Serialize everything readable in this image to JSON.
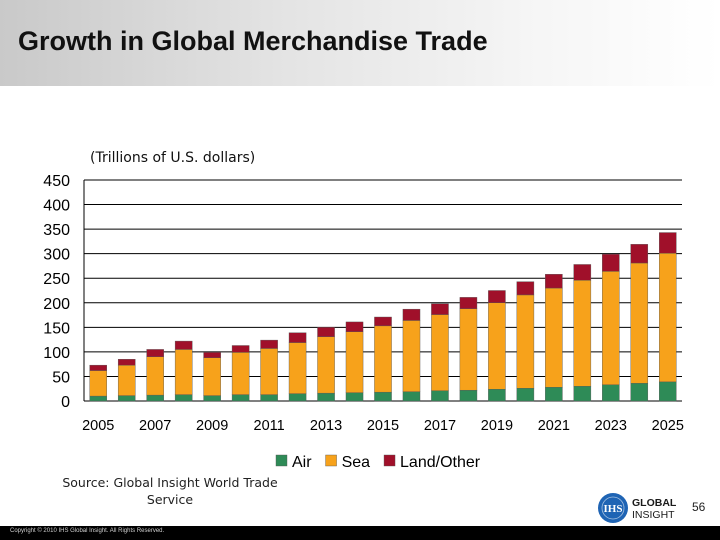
{
  "slide": {
    "title": "Growth in Global Merchandise Trade",
    "units_label": "(Trillions of U.S. dollars)",
    "source": "Source: Global Insight World Trade Service",
    "page_number": "56",
    "copyright": "Copyright © 2010 IHS Global Insight. All Rights Reserved.",
    "logo": {
      "ihs": "IHS",
      "line1": "GLOBAL",
      "line2": "INSIGHT",
      "colors": [
        "#1f64b4",
        "#1a1a1a"
      ]
    }
  },
  "chart_data": {
    "type": "bar",
    "stacked": true,
    "title": "",
    "xlabel": "",
    "ylabel": "",
    "categories": [
      "2005",
      "2006",
      "2007",
      "2008",
      "2009",
      "2010",
      "2011",
      "2012",
      "2013",
      "2014",
      "2015",
      "2016",
      "2017",
      "2018",
      "2019",
      "2020",
      "2021",
      "2022",
      "2023",
      "2024",
      "2025"
    ],
    "x_tick_labels": [
      "2005",
      "2007",
      "2009",
      "2011",
      "2013",
      "2015",
      "2017",
      "2019",
      "2021",
      "2023",
      "2025"
    ],
    "ylim": [
      0,
      450
    ],
    "y_ticks": [
      0,
      50,
      100,
      150,
      200,
      250,
      300,
      350,
      400,
      450
    ],
    "grid": true,
    "legend_position": "bottom",
    "series": [
      {
        "name": "Air",
        "color": "#2e8b57",
        "values": [
          10,
          11,
          12,
          13,
          11,
          13,
          13,
          15,
          16,
          17,
          18,
          19,
          21,
          22,
          24,
          26,
          28,
          30,
          33,
          36,
          39
        ]
      },
      {
        "name": "Sea",
        "color": "#f7a21b",
        "values": [
          52,
          62,
          78,
          92,
          77,
          86,
          94,
          104,
          115,
          124,
          135,
          145,
          155,
          166,
          176,
          190,
          202,
          216,
          231,
          245,
          262
        ]
      },
      {
        "name": "Land/Other",
        "color": "#a0102a",
        "values": [
          11,
          12,
          15,
          17,
          11,
          14,
          17,
          20,
          19,
          20,
          18,
          23,
          22,
          23,
          25,
          27,
          28,
          32,
          35,
          38,
          42
        ]
      }
    ]
  }
}
